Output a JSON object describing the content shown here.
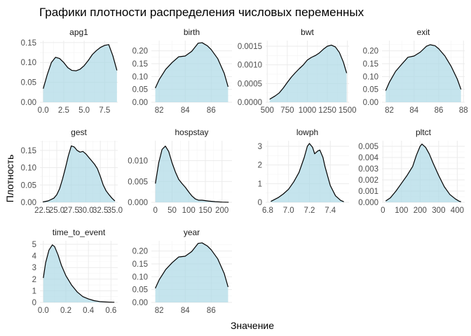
{
  "title": "Графики плотности распределения числовых переменных",
  "xlabel": "Значение",
  "ylabel": "Плотность",
  "colors": {
    "fill": "#add8e6",
    "fill_opacity": 0.7,
    "line": "#000000"
  },
  "chart_data": [
    {
      "type": "area",
      "name": "apg1",
      "xlim": [
        -0.4,
        9.1
      ],
      "ylim": [
        0,
        0.155
      ],
      "xticks": [
        0,
        2.5,
        5,
        7.5
      ],
      "xtick_labels": [
        "0.0",
        "2.5",
        "5.0",
        "7.5"
      ],
      "yticks": [
        0,
        0.05,
        0.1,
        0.15
      ],
      "ytick_labels": [
        "0.00",
        "0.05",
        "0.10",
        "0.15"
      ],
      "x": [
        0,
        0.5,
        1,
        1.5,
        2,
        2.5,
        3,
        3.5,
        4,
        4.5,
        5,
        5.5,
        6,
        6.5,
        7,
        7.5,
        8,
        8.5,
        9
      ],
      "y": [
        0.034,
        0.07,
        0.1,
        0.113,
        0.11,
        0.1,
        0.087,
        0.08,
        0.079,
        0.083,
        0.092,
        0.105,
        0.12,
        0.13,
        0.138,
        0.143,
        0.145,
        0.117,
        0.08
      ]
    },
    {
      "type": "area",
      "name": "birth",
      "xlim": [
        81.4,
        87.6
      ],
      "ylim": [
        0,
        0.24
      ],
      "xticks": [
        82,
        84,
        86
      ],
      "xtick_labels": [
        "82",
        "84",
        "86"
      ],
      "yticks": [
        0,
        0.05,
        0.1,
        0.15,
        0.2
      ],
      "ytick_labels": [
        "0.00",
        "0.05",
        "0.10",
        "0.15",
        "0.20"
      ],
      "x": [
        81.7,
        82,
        82.5,
        83,
        83.5,
        84,
        84.5,
        85,
        85.3,
        85.7,
        86,
        86.5,
        87,
        87.3
      ],
      "y": [
        0.055,
        0.088,
        0.128,
        0.155,
        0.177,
        0.18,
        0.198,
        0.23,
        0.232,
        0.22,
        0.205,
        0.17,
        0.113,
        0.06
      ]
    },
    {
      "type": "area",
      "name": "bwt",
      "xlim": [
        480,
        1520
      ],
      "ylim": [
        0,
        0.00165
      ],
      "xticks": [
        500,
        750,
        1000,
        1250,
        1500
      ],
      "xtick_labels": [
        "500",
        "750",
        "1000",
        "1250",
        "1500"
      ],
      "yticks": [
        0,
        0.0005,
        0.001,
        0.0015
      ],
      "ytick_labels": [
        "0.0000",
        "0.0005",
        "0.0010",
        "0.0015"
      ],
      "x": [
        530,
        600,
        650,
        700,
        750,
        800,
        850,
        900,
        950,
        1000,
        1050,
        1100,
        1150,
        1200,
        1250,
        1300,
        1350,
        1400,
        1450,
        1490
      ],
      "y": [
        8e-05,
        0.00017,
        0.00025,
        0.00038,
        0.00053,
        0.00067,
        0.00079,
        0.0009,
        0.001,
        0.00113,
        0.0012,
        0.00125,
        0.00132,
        0.00142,
        0.0015,
        0.00153,
        0.00148,
        0.00133,
        0.00107,
        0.00078
      ]
    },
    {
      "type": "area",
      "name": "exit",
      "xlim": [
        81.4,
        88.1
      ],
      "ylim": [
        0,
        0.24
      ],
      "xticks": [
        82,
        84,
        86,
        88
      ],
      "xtick_labels": [
        "82",
        "84",
        "86",
        "88"
      ],
      "yticks": [
        0,
        0.05,
        0.1,
        0.15,
        0.2
      ],
      "ytick_labels": [
        "0.00",
        "0.05",
        "0.10",
        "0.15",
        "0.20"
      ],
      "x": [
        81.7,
        82,
        82.5,
        83,
        83.5,
        84,
        84.5,
        85,
        85.3,
        85.7,
        86,
        86.5,
        87,
        87.5,
        87.8
      ],
      "y": [
        0.045,
        0.078,
        0.12,
        0.148,
        0.175,
        0.18,
        0.195,
        0.218,
        0.224,
        0.22,
        0.208,
        0.18,
        0.14,
        0.09,
        0.05
      ]
    },
    {
      "type": "area",
      "name": "gest",
      "xlim": [
        22.1,
        35.5
      ],
      "ylim": [
        0,
        0.178
      ],
      "xticks": [
        22.5,
        25,
        27.5,
        30,
        32.5,
        35
      ],
      "xtick_labels": [
        "22.5",
        "25.0",
        "27.5",
        "30.0",
        "32.5",
        "35.0"
      ],
      "yticks": [
        0,
        0.05,
        0.1,
        0.15
      ],
      "ytick_labels": [
        "0.00",
        "0.05",
        "0.10",
        "0.15"
      ],
      "x": [
        22.6,
        23.5,
        24.5,
        25,
        25.5,
        26,
        26.5,
        27,
        27.5,
        28,
        28.5,
        29,
        29.5,
        30,
        30.5,
        31,
        31.5,
        32,
        32.5,
        33,
        33.5,
        34,
        34.5,
        35
      ],
      "y": [
        0.001,
        0.004,
        0.012,
        0.022,
        0.04,
        0.068,
        0.1,
        0.135,
        0.163,
        0.16,
        0.15,
        0.145,
        0.147,
        0.14,
        0.13,
        0.12,
        0.11,
        0.097,
        0.075,
        0.05,
        0.033,
        0.022,
        0.012,
        0.004
      ]
    },
    {
      "type": "area",
      "name": "hospstay",
      "xlim": [
        -12,
        230
      ],
      "ylim": [
        0,
        0.0148
      ],
      "xticks": [
        0,
        50,
        100,
        150,
        200
      ],
      "xtick_labels": [
        "0",
        "50",
        "100",
        "150",
        "200"
      ],
      "yticks": [
        0,
        0.005,
        0.01
      ],
      "ytick_labels": [
        "0.000",
        "0.005",
        "0.010"
      ],
      "x": [
        0,
        10,
        20,
        30,
        40,
        50,
        60,
        70,
        80,
        90,
        100,
        110,
        120,
        130,
        140,
        150,
        160,
        180,
        200,
        220
      ],
      "y": [
        0.0045,
        0.0095,
        0.0127,
        0.0135,
        0.0122,
        0.0095,
        0.0073,
        0.0055,
        0.0045,
        0.0036,
        0.0025,
        0.0015,
        0.0008,
        0.0005,
        0.0005,
        0.0004,
        0.0003,
        0.00015,
        5e-05,
        1e-05
      ]
    },
    {
      "type": "area",
      "name": "lowph",
      "xlim": [
        6.78,
        7.58
      ],
      "ylim": [
        0,
        3.3
      ],
      "xticks": [
        6.8,
        7.0,
        7.2,
        7.4
      ],
      "xtick_labels": [
        "6.8",
        "7.0",
        "7.2",
        "7.4"
      ],
      "yticks": [
        0,
        1,
        2,
        3
      ],
      "ytick_labels": [
        "0",
        "1",
        "2",
        "3"
      ],
      "x": [
        6.83,
        6.9,
        6.95,
        7.0,
        7.05,
        7.1,
        7.15,
        7.18,
        7.2,
        7.23,
        7.25,
        7.28,
        7.3,
        7.33,
        7.35,
        7.4,
        7.45,
        7.5,
        7.53
      ],
      "y": [
        0.05,
        0.25,
        0.45,
        0.7,
        1.1,
        1.6,
        2.4,
        3.0,
        3.15,
        2.95,
        2.6,
        2.75,
        2.8,
        2.4,
        1.9,
        0.9,
        0.35,
        0.1,
        0.03
      ]
    },
    {
      "type": "area",
      "name": "pltct",
      "xlim": [
        -5,
        440
      ],
      "ylim": [
        0,
        0.0055
      ],
      "xticks": [
        0,
        100,
        200,
        300,
        400
      ],
      "xtick_labels": [
        "0",
        "100",
        "200",
        "300",
        "400"
      ],
      "yticks": [
        0,
        0.001,
        0.002,
        0.003,
        0.004,
        0.005
      ],
      "ytick_labels": [
        "0.000",
        "0.001",
        "0.002",
        "0.003",
        "0.004",
        "0.005"
      ],
      "x": [
        15,
        40,
        70,
        100,
        130,
        160,
        180,
        200,
        210,
        230,
        250,
        270,
        300,
        330,
        360,
        390,
        410,
        420
      ],
      "y": [
        0.00012,
        0.0004,
        0.001,
        0.0017,
        0.0024,
        0.0032,
        0.0042,
        0.005,
        0.0052,
        0.0049,
        0.0043,
        0.0035,
        0.0024,
        0.0014,
        0.0007,
        0.0003,
        0.0001,
        5e-05
      ]
    },
    {
      "type": "area",
      "name": "time_to_event",
      "xlim": [
        -0.03,
        0.66
      ],
      "ylim": [
        0,
        5.3
      ],
      "xticks": [
        0,
        0.2,
        0.4,
        0.6
      ],
      "xtick_labels": [
        "0.0",
        "0.2",
        "0.4",
        "0.6"
      ],
      "yticks": [
        0,
        1,
        2,
        3,
        4,
        5
      ],
      "ytick_labels": [
        "0",
        "1",
        "2",
        "3",
        "4",
        "5"
      ],
      "x": [
        0,
        0.02,
        0.05,
        0.08,
        0.1,
        0.13,
        0.16,
        0.2,
        0.25,
        0.3,
        0.35,
        0.4,
        0.45,
        0.5,
        0.55,
        0.6,
        0.63
      ],
      "y": [
        2.1,
        3.4,
        4.5,
        4.95,
        4.8,
        4.1,
        3.2,
        2.3,
        1.5,
        0.9,
        0.5,
        0.3,
        0.15,
        0.07,
        0.04,
        0.02,
        0.01
      ]
    },
    {
      "type": "area",
      "name": "year",
      "xlim": [
        81.4,
        87.6
      ],
      "ylim": [
        0,
        0.24
      ],
      "xticks": [
        82,
        84,
        86
      ],
      "xtick_labels": [
        "82",
        "84",
        "86"
      ],
      "yticks": [
        0,
        0.05,
        0.1,
        0.15,
        0.2
      ],
      "ytick_labels": [
        "0.00",
        "0.05",
        "0.10",
        "0.15",
        "0.20"
      ],
      "x": [
        81.7,
        82,
        82.5,
        83,
        83.5,
        84,
        84.5,
        85,
        85.3,
        85.7,
        86,
        86.5,
        87,
        87.3
      ],
      "y": [
        0.055,
        0.088,
        0.128,
        0.155,
        0.177,
        0.18,
        0.198,
        0.23,
        0.232,
        0.22,
        0.205,
        0.17,
        0.113,
        0.06
      ]
    }
  ]
}
